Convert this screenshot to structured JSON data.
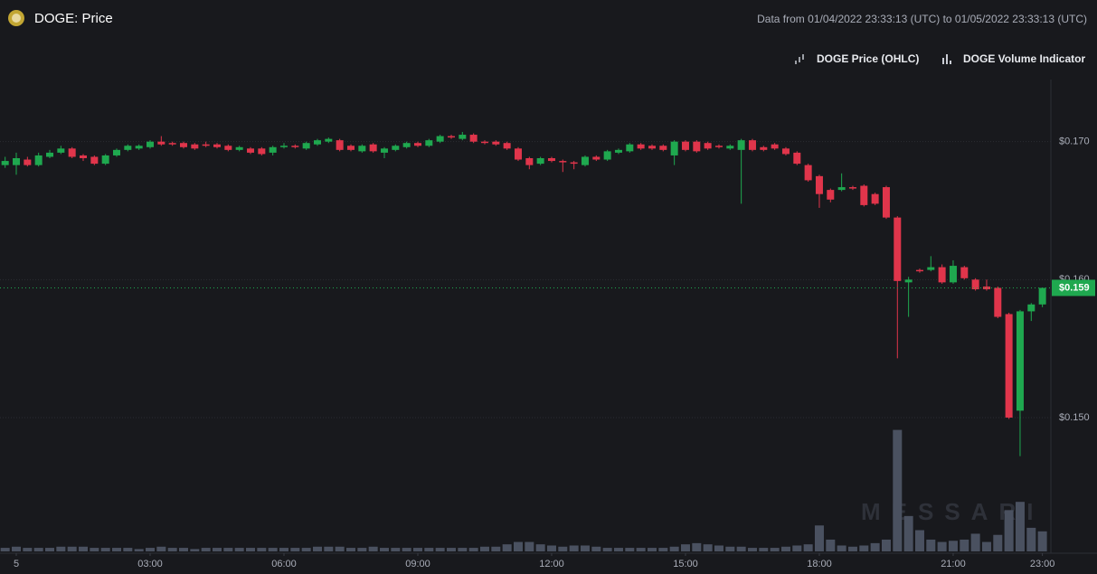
{
  "chart_data": {
    "type": "candlestick",
    "title": "DOGE: Price",
    "subtitle": "Data from 01/04/2022 23:33:13 (UTC) to 01/05/2022 23:33:13 (UTC)",
    "watermark": "MESSARI",
    "x": [
      -0.25,
      0,
      0.25,
      0.5,
      0.75,
      1,
      1.25,
      1.5,
      1.75,
      2,
      2.25,
      2.5,
      2.75,
      3,
      3.25,
      3.5,
      3.75,
      4,
      4.25,
      4.5,
      4.75,
      5,
      5.25,
      5.5,
      5.75,
      6,
      6.25,
      6.5,
      6.75,
      7,
      7.25,
      7.5,
      7.75,
      8,
      8.25,
      8.5,
      8.75,
      9,
      9.25,
      9.5,
      9.75,
      10,
      10.25,
      10.5,
      10.75,
      11,
      11.25,
      11.5,
      11.75,
      12,
      12.25,
      12.5,
      12.75,
      13,
      13.25,
      13.5,
      13.75,
      14,
      14.25,
      14.5,
      14.75,
      15,
      15.25,
      15.5,
      15.75,
      16,
      16.25,
      16.5,
      16.75,
      17,
      17.25,
      17.5,
      17.75,
      18,
      18.25,
      18.5,
      18.75,
      19,
      19.25,
      19.5,
      19.75,
      20,
      20.25,
      20.5,
      20.75,
      21,
      21.25,
      21.5,
      21.75,
      22,
      22.25,
      22.5,
      22.75,
      23
    ],
    "xlim": [
      -0.365,
      23.19
    ],
    "xticks": [
      {
        "value": 0,
        "label": "5"
      },
      {
        "value": 3,
        "label": "03:00"
      },
      {
        "value": 6,
        "label": "06:00"
      },
      {
        "value": 9,
        "label": "09:00"
      },
      {
        "value": 12,
        "label": "12:00"
      },
      {
        "value": 15,
        "label": "15:00"
      },
      {
        "value": 18,
        "label": "18:00"
      },
      {
        "value": 21,
        "label": "21:00"
      },
      {
        "value": 23,
        "label": "23:00"
      }
    ],
    "ylim": [
      0.1403,
      0.1745
    ],
    "yticks": [
      {
        "value": 0.15,
        "label": "$0.150"
      },
      {
        "value": 0.16,
        "label": "$0.160"
      },
      {
        "value": 0.17,
        "label": "$0.170"
      }
    ],
    "grid": true,
    "last_price": {
      "value": 0.1594,
      "label": "$0.159",
      "color": "#1fa84f"
    },
    "vlim": [
      0,
      400
    ],
    "series": [
      {
        "name": "DOGE Price (OHLC)",
        "up_color": "#1fa84f",
        "down_color": "#e0354b",
        "open": [
          0.1683,
          0.1683,
          0.1687,
          0.1683,
          0.1689,
          0.1692,
          0.1695,
          0.169,
          0.1689,
          0.1684,
          0.169,
          0.1694,
          0.1695,
          0.1696,
          0.17,
          0.1699,
          0.1699,
          0.1698,
          0.1698,
          0.1698,
          0.1697,
          0.1694,
          0.1695,
          0.1695,
          0.1692,
          0.1696,
          0.1697,
          0.1695,
          0.1698,
          0.17,
          0.1701,
          0.1697,
          0.1693,
          0.1698,
          0.1692,
          0.1694,
          0.1696,
          0.1699,
          0.1697,
          0.17,
          0.1704,
          0.1702,
          0.1705,
          0.17,
          0.17,
          0.1699,
          0.1695,
          0.1688,
          0.1684,
          0.1688,
          0.1686,
          0.1685,
          0.1683,
          0.1689,
          0.1687,
          0.1692,
          0.1693,
          0.1698,
          0.1697,
          0.1697,
          0.169,
          0.17,
          0.17,
          0.1699,
          0.1697,
          0.1695,
          0.1694,
          0.1701,
          0.1696,
          0.1698,
          0.1695,
          0.1692,
          0.1683,
          0.1675,
          0.1665,
          0.1665,
          0.1667,
          0.1668,
          0.1662,
          0.1667,
          0.1645,
          0.1598,
          0.1607,
          0.1607,
          0.1609,
          0.1598,
          0.1609,
          0.16,
          0.1595,
          0.1594,
          0.1575,
          0.1505,
          0.1577,
          0.1582
        ],
        "high": [
          0.1689,
          0.1692,
          0.1689,
          0.1692,
          0.1694,
          0.1697,
          0.1696,
          0.1691,
          0.169,
          0.1691,
          0.1695,
          0.1698,
          0.1698,
          0.1701,
          0.1704,
          0.17,
          0.17,
          0.1699,
          0.17,
          0.1699,
          0.1698,
          0.1697,
          0.1696,
          0.1696,
          0.1697,
          0.1699,
          0.1698,
          0.17,
          0.1702,
          0.1703,
          0.1702,
          0.1698,
          0.1698,
          0.1699,
          0.1696,
          0.1698,
          0.17,
          0.17,
          0.1702,
          0.1705,
          0.1705,
          0.1707,
          0.1706,
          0.1701,
          0.1701,
          0.17,
          0.1696,
          0.1689,
          0.1689,
          0.1689,
          0.1687,
          0.1686,
          0.169,
          0.169,
          0.1694,
          0.1695,
          0.1699,
          0.1699,
          0.1698,
          0.1698,
          0.1701,
          0.1701,
          0.1701,
          0.17,
          0.1698,
          0.1698,
          0.1702,
          0.1702,
          0.1697,
          0.1699,
          0.1696,
          0.1693,
          0.1684,
          0.1676,
          0.1666,
          0.1677,
          0.1668,
          0.1669,
          0.1663,
          0.1668,
          0.1646,
          0.1602,
          0.1608,
          0.1617,
          0.1611,
          0.1614,
          0.161,
          0.1601,
          0.16,
          0.1595,
          0.1576,
          0.1578,
          0.1583,
          0.1594
        ],
        "low": [
          0.1681,
          0.1676,
          0.1682,
          0.1682,
          0.1688,
          0.1691,
          0.1688,
          0.1686,
          0.1683,
          0.1683,
          0.1689,
          0.1693,
          0.1694,
          0.1695,
          0.1697,
          0.1697,
          0.1695,
          0.1694,
          0.1696,
          0.1695,
          0.1693,
          0.1693,
          0.1691,
          0.169,
          0.169,
          0.1695,
          0.1695,
          0.1694,
          0.1697,
          0.1699,
          0.1693,
          0.1693,
          0.1692,
          0.1692,
          0.1688,
          0.1693,
          0.1695,
          0.1696,
          0.1696,
          0.1699,
          0.1702,
          0.1701,
          0.1699,
          0.1698,
          0.1697,
          0.1694,
          0.1686,
          0.168,
          0.1683,
          0.1685,
          0.1678,
          0.168,
          0.1682,
          0.1686,
          0.1686,
          0.1691,
          0.1692,
          0.1694,
          0.1694,
          0.1693,
          0.1683,
          0.1693,
          0.1692,
          0.1694,
          0.1695,
          0.1694,
          0.1655,
          0.1693,
          0.1693,
          0.1694,
          0.169,
          0.1683,
          0.1671,
          0.1652,
          0.1656,
          0.1664,
          0.1665,
          0.1653,
          0.1654,
          0.1644,
          0.1543,
          0.1573,
          0.1605,
          0.1606,
          0.1597,
          0.1597,
          0.16,
          0.1592,
          0.1592,
          0.1572,
          0.1499,
          0.1472,
          0.157,
          0.158
        ],
        "close": [
          0.1686,
          0.1688,
          0.1683,
          0.169,
          0.1692,
          0.1695,
          0.1689,
          0.1688,
          0.1684,
          0.169,
          0.1694,
          0.1697,
          0.1697,
          0.17,
          0.1698,
          0.1698,
          0.1696,
          0.1695,
          0.1697,
          0.1696,
          0.1694,
          0.1696,
          0.1692,
          0.1691,
          0.1696,
          0.1697,
          0.1696,
          0.1699,
          0.1701,
          0.1702,
          0.1694,
          0.1694,
          0.1697,
          0.1693,
          0.1695,
          0.1697,
          0.1699,
          0.1697,
          0.1701,
          0.1704,
          0.1703,
          0.1705,
          0.17,
          0.1699,
          0.1698,
          0.1695,
          0.1687,
          0.1683,
          0.1688,
          0.1686,
          0.1685,
          0.1684,
          0.1689,
          0.1687,
          0.1693,
          0.1694,
          0.1698,
          0.1695,
          0.1695,
          0.1694,
          0.17,
          0.1694,
          0.1693,
          0.1695,
          0.1696,
          0.1697,
          0.1701,
          0.1694,
          0.1694,
          0.1695,
          0.1691,
          0.1684,
          0.1672,
          0.1662,
          0.1658,
          0.1667,
          0.1666,
          0.1654,
          0.1655,
          0.1645,
          0.1599,
          0.16,
          0.1606,
          0.1609,
          0.1598,
          0.161,
          0.1601,
          0.1593,
          0.1593,
          0.1573,
          0.15,
          0.1577,
          0.1582,
          0.1594
        ]
      },
      {
        "name": "DOGE Volume Indicator",
        "color": "#4a5160",
        "axis": "volume",
        "values": [
          3,
          4,
          3,
          3,
          3,
          4,
          4,
          4,
          3,
          3,
          3,
          3,
          2,
          3,
          4,
          3,
          3,
          2,
          3,
          3,
          3,
          3,
          3,
          3,
          3,
          3,
          3,
          3,
          4,
          4,
          4,
          3,
          3,
          4,
          3,
          3,
          3,
          3,
          3,
          3,
          3,
          3,
          3,
          4,
          4,
          6,
          8,
          8,
          6,
          5,
          4,
          5,
          5,
          4,
          3,
          3,
          3,
          3,
          3,
          3,
          4,
          6,
          7,
          6,
          5,
          4,
          4,
          3,
          3,
          3,
          4,
          5,
          6,
          22,
          10,
          5,
          4,
          5,
          7,
          10,
          103,
          30,
          18,
          10,
          8,
          9,
          10,
          15,
          8,
          14,
          35,
          42,
          20,
          17
        ]
      }
    ]
  }
}
